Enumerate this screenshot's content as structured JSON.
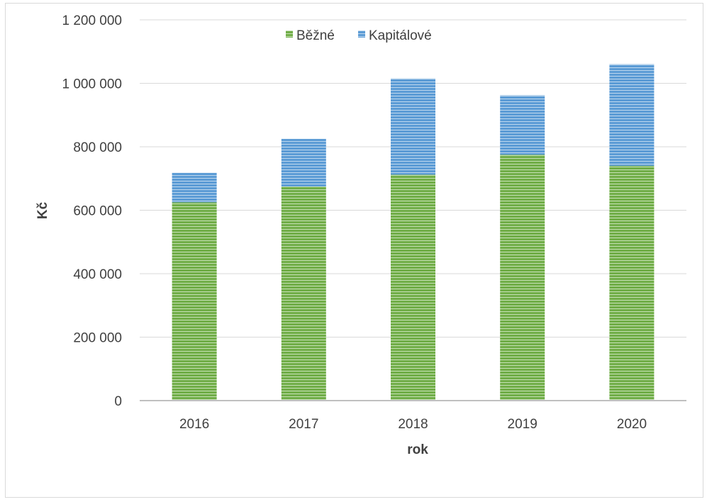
{
  "chart_data": {
    "type": "bar",
    "stacked": true,
    "categories": [
      "2016",
      "2017",
      "2018",
      "2019",
      "2020"
    ],
    "series": [
      {
        "name": "Běžné",
        "color": "#70ad47",
        "values": [
          625000,
          675000,
          712000,
          775000,
          740000
        ]
      },
      {
        "name": "Kapitálové",
        "color": "#5b9bd5",
        "values": [
          93000,
          150000,
          303000,
          187000,
          320000
        ]
      }
    ],
    "xlabel": "rok",
    "ylabel": "Kč",
    "ylim": [
      0,
      1200000
    ],
    "yticks": [
      "0",
      "200 000",
      "400 000",
      "600 000",
      "800 000",
      "1 000 000",
      "1 200 000"
    ],
    "grid": true,
    "legend": "top"
  }
}
